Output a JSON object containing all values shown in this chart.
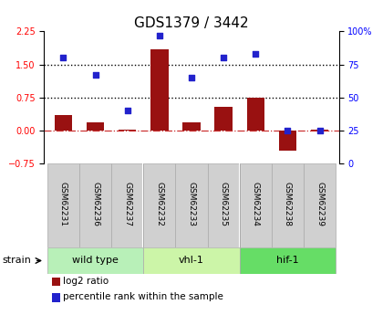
{
  "title": "GDS1379 / 3442",
  "samples": [
    "GSM62231",
    "GSM62236",
    "GSM62237",
    "GSM62232",
    "GSM62233",
    "GSM62235",
    "GSM62234",
    "GSM62238",
    "GSM62239"
  ],
  "log2_ratio": [
    0.35,
    0.18,
    0.02,
    1.85,
    0.2,
    0.55,
    0.75,
    -0.45,
    0.02
  ],
  "percentile_rank": [
    80,
    67,
    40,
    97,
    65,
    80,
    83,
    25,
    25
  ],
  "groups": [
    {
      "label": "wild type",
      "start": 0,
      "end": 3,
      "color": "#b8f0b8"
    },
    {
      "label": "vhl-1",
      "start": 3,
      "end": 6,
      "color": "#ccf5a8"
    },
    {
      "label": "hif-1",
      "start": 6,
      "end": 9,
      "color": "#66dd66"
    }
  ],
  "bar_color": "#991111",
  "dot_color": "#2222cc",
  "left_ylim": [
    -0.75,
    2.25
  ],
  "right_ylim": [
    0,
    100
  ],
  "left_yticks": [
    -0.75,
    0,
    0.75,
    1.5,
    2.25
  ],
  "right_yticks": [
    0,
    25,
    50,
    75,
    100
  ],
  "hline_values": [
    0.75,
    1.5
  ],
  "zero_line": 0.0,
  "title_fontsize": 11,
  "tick_fontsize": 7,
  "label_fontsize": 8,
  "legend_fontsize": 7.5,
  "sample_label_fontsize": 6.5
}
